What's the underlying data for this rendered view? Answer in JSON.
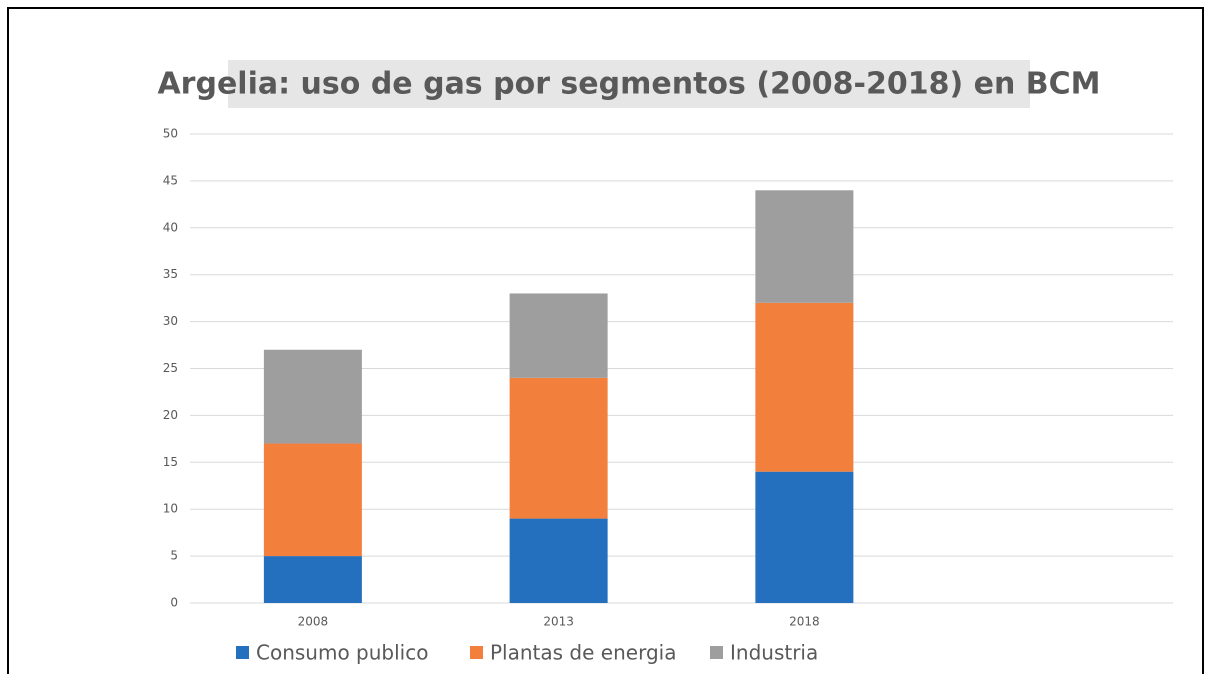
{
  "chart_data": {
    "type": "stacked_bar",
    "title": "Argelia: uso de gas por segmentos (2008-2018) en BCM",
    "categories": [
      "2008",
      "2013",
      "2018",
      null
    ],
    "series": [
      {
        "name": "Consumo publico",
        "color": "#2470bf",
        "values": [
          5,
          9,
          14,
          null
        ]
      },
      {
        "name": "Plantas de energia",
        "color": "#f2803c",
        "values": [
          12,
          15,
          18,
          null
        ]
      },
      {
        "name": "Industria",
        "color": "#9e9e9e",
        "values": [
          10,
          9,
          12,
          null
        ]
      }
    ],
    "ylim": [
      0,
      50
    ],
    "yticks": [
      0,
      5,
      10,
      15,
      20,
      25,
      30,
      35,
      40,
      45,
      50
    ],
    "grid": true,
    "legend": "bottom"
  }
}
